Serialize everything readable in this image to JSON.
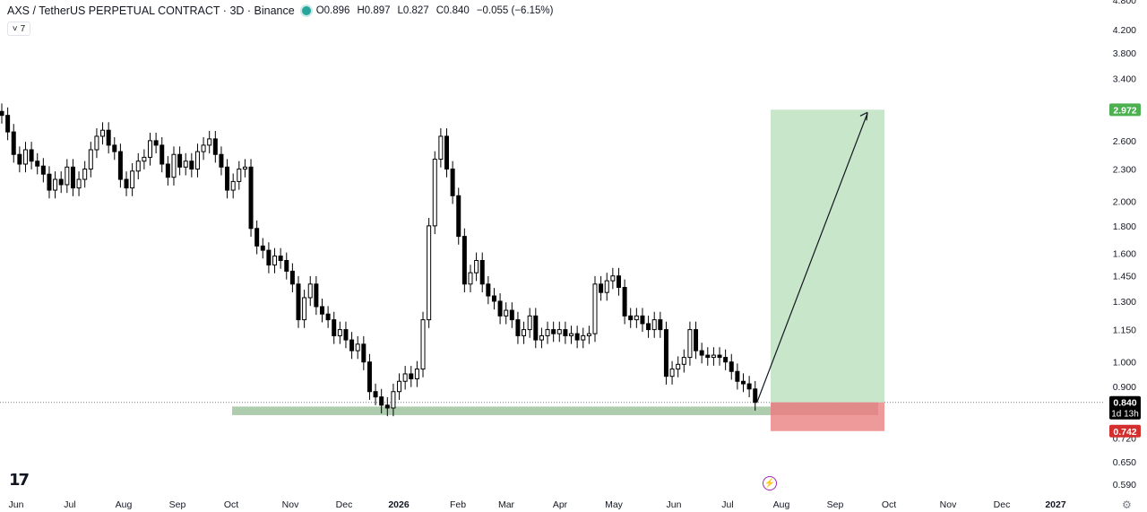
{
  "header": {
    "title": "AXS / TetherUS PERPETUAL CONTRACT · 3D · Binance",
    "open": "O0.896",
    "high": "H0.897",
    "low": "L0.827",
    "close": "C0.840",
    "change": "−0.055 (−6.15%)"
  },
  "interval_button": {
    "chevron": "˅",
    "label": "7"
  },
  "logo_text": "17",
  "icons": {
    "bolt": "lightning-icon",
    "settings": "gear-icon"
  },
  "colors": {
    "up": "#ffffff",
    "down": "#000000",
    "wick": "#000000",
    "profit_zone": "#c8e6c9",
    "loss_zone": "#ef9a9a",
    "support_zone": "#a5c8a5",
    "target_label": "#4caf50",
    "stop_label": "#d32f2f",
    "price_label": "#000000"
  },
  "chart_data": {
    "type": "candlestick",
    "symbol": "AXS / TetherUS PERPETUAL CONTRACT",
    "interval": "3D",
    "exchange": "Binance",
    "y_scale": "log",
    "y_ticks": [
      "4.800",
      "4.200",
      "3.800",
      "3.400",
      "2.972",
      "2.600",
      "2.300",
      "2.000",
      "1.800",
      "1.600",
      "1.450",
      "1.300",
      "1.150",
      "1.000",
      "0.900",
      "0.840",
      "0.742",
      "0.720",
      "0.650",
      "0.590"
    ],
    "x_ticks": [
      "Jun",
      "Jul",
      "Aug",
      "Sep",
      "Oct",
      "Nov",
      "Dec",
      "2026",
      "Feb",
      "Mar",
      "Apr",
      "May",
      "Jun",
      "Jul",
      "Aug",
      "Sep",
      "Oct",
      "Nov",
      "Dec",
      "2027"
    ],
    "current_price": {
      "value": 0.84,
      "label": "0.840",
      "countdown": "1d 13h"
    },
    "target": {
      "value": 2.972,
      "label": "2.972"
    },
    "stop": {
      "value": 0.742,
      "label": "0.742"
    },
    "support_zone": {
      "low": 0.795,
      "high": 0.825
    },
    "closes": [
      2.9,
      2.7,
      2.45,
      2.35,
      2.5,
      2.38,
      2.33,
      2.25,
      2.1,
      2.2,
      2.15,
      2.32,
      2.12,
      2.2,
      2.3,
      2.5,
      2.65,
      2.72,
      2.55,
      2.48,
      2.2,
      2.12,
      2.28,
      2.38,
      2.42,
      2.6,
      2.55,
      2.35,
      2.22,
      2.45,
      2.32,
      2.38,
      2.3,
      2.48,
      2.55,
      2.62,
      2.45,
      2.32,
      2.1,
      2.18,
      2.3,
      2.32,
      1.78,
      1.65,
      1.62,
      1.52,
      1.58,
      1.55,
      1.48,
      1.4,
      1.2,
      1.32,
      1.4,
      1.27,
      1.23,
      1.2,
      1.12,
      1.15,
      1.1,
      1.05,
      1.08,
      1.0,
      0.88,
      0.86,
      0.83,
      0.82,
      0.88,
      0.92,
      0.95,
      0.93,
      0.97,
      1.2,
      1.8,
      2.4,
      2.65,
      2.3,
      2.05,
      1.72,
      1.4,
      1.47,
      1.55,
      1.4,
      1.33,
      1.3,
      1.22,
      1.25,
      1.2,
      1.12,
      1.15,
      1.22,
      1.1,
      1.12,
      1.15,
      1.13,
      1.15,
      1.12,
      1.13,
      1.1,
      1.12,
      1.13,
      1.4,
      1.35,
      1.42,
      1.45,
      1.38,
      1.22,
      1.2,
      1.22,
      1.18,
      1.15,
      1.2,
      1.15,
      0.94,
      0.97,
      0.99,
      1.02,
      1.15,
      1.05,
      1.03,
      1.02,
      1.03,
      1.02,
      1.0,
      0.96,
      0.92,
      0.91,
      0.89,
      0.84
    ]
  }
}
